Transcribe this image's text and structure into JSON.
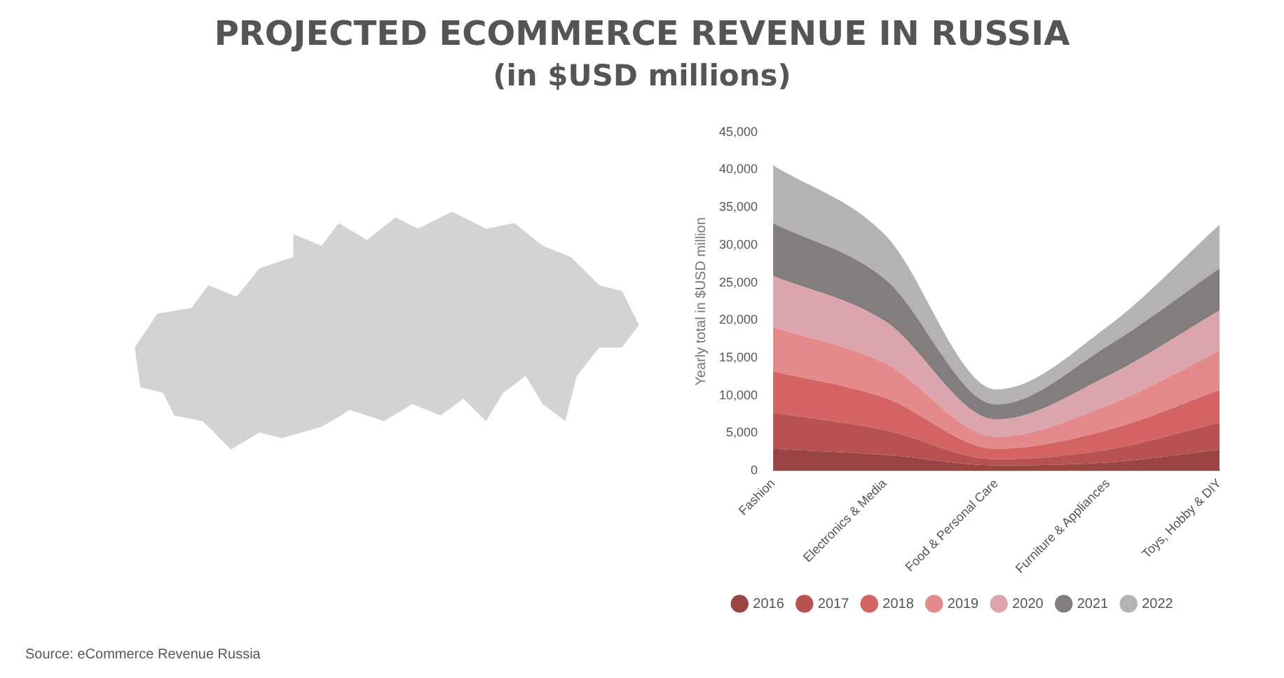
{
  "chart_data": {
    "type": "area",
    "title": "PROJECTED ECOMMERCE REVENUE IN RUSSIA",
    "subtitle": "(in $USD millions)",
    "ylabel": "Yearly total in $USD million",
    "annotations": [
      "Source: eCommerce Revenue Russia"
    ],
    "categories": [
      "Fashion",
      "Electronics & Media",
      "Food & Personal Care",
      "Furniture & Appliances",
      "Toys, Hobby & DIY"
    ],
    "stacked": true,
    "legend": "bottom",
    "ylim": [
      0,
      45000
    ],
    "yticks": [
      {
        "value": 0,
        "label": "0"
      },
      {
        "value": 5000,
        "label": "5,000"
      },
      {
        "value": 10000,
        "label": "10,000"
      },
      {
        "value": 15000,
        "label": "15,000"
      },
      {
        "value": 20000,
        "label": "20,000"
      },
      {
        "value": 25000,
        "label": "25,000"
      },
      {
        "value": 30000,
        "label": "30,000"
      },
      {
        "value": 35000,
        "label": "35,000"
      },
      {
        "value": 40000,
        "label": "40,000"
      },
      {
        "value": 45000,
        "label": "45,000"
      }
    ],
    "series": [
      {
        "name": "2016",
        "color": "#9a4444",
        "values": [
          2900,
          2100,
          700,
          1100,
          2800
        ]
      },
      {
        "name": "2017",
        "color": "#b85252",
        "values": [
          4800,
          3300,
          800,
          1700,
          3600
        ]
      },
      {
        "name": "2018",
        "color": "#d46464",
        "values": [
          5500,
          4300,
          1400,
          2600,
          4300
        ]
      },
      {
        "name": "2019",
        "color": "#e48a8a",
        "values": [
          5900,
          4600,
          1600,
          3300,
          5200
        ]
      },
      {
        "name": "2020",
        "color": "#dca4ac",
        "values": [
          6800,
          5600,
          2300,
          3900,
          5400
        ]
      },
      {
        "name": "2021",
        "color": "#837d7e",
        "values": [
          7000,
          5600,
          2000,
          4000,
          5600
        ]
      },
      {
        "name": "2022",
        "color": "#b4b2b2",
        "values": [
          7700,
          5900,
          2000,
          2600,
          5800
        ]
      }
    ]
  }
}
